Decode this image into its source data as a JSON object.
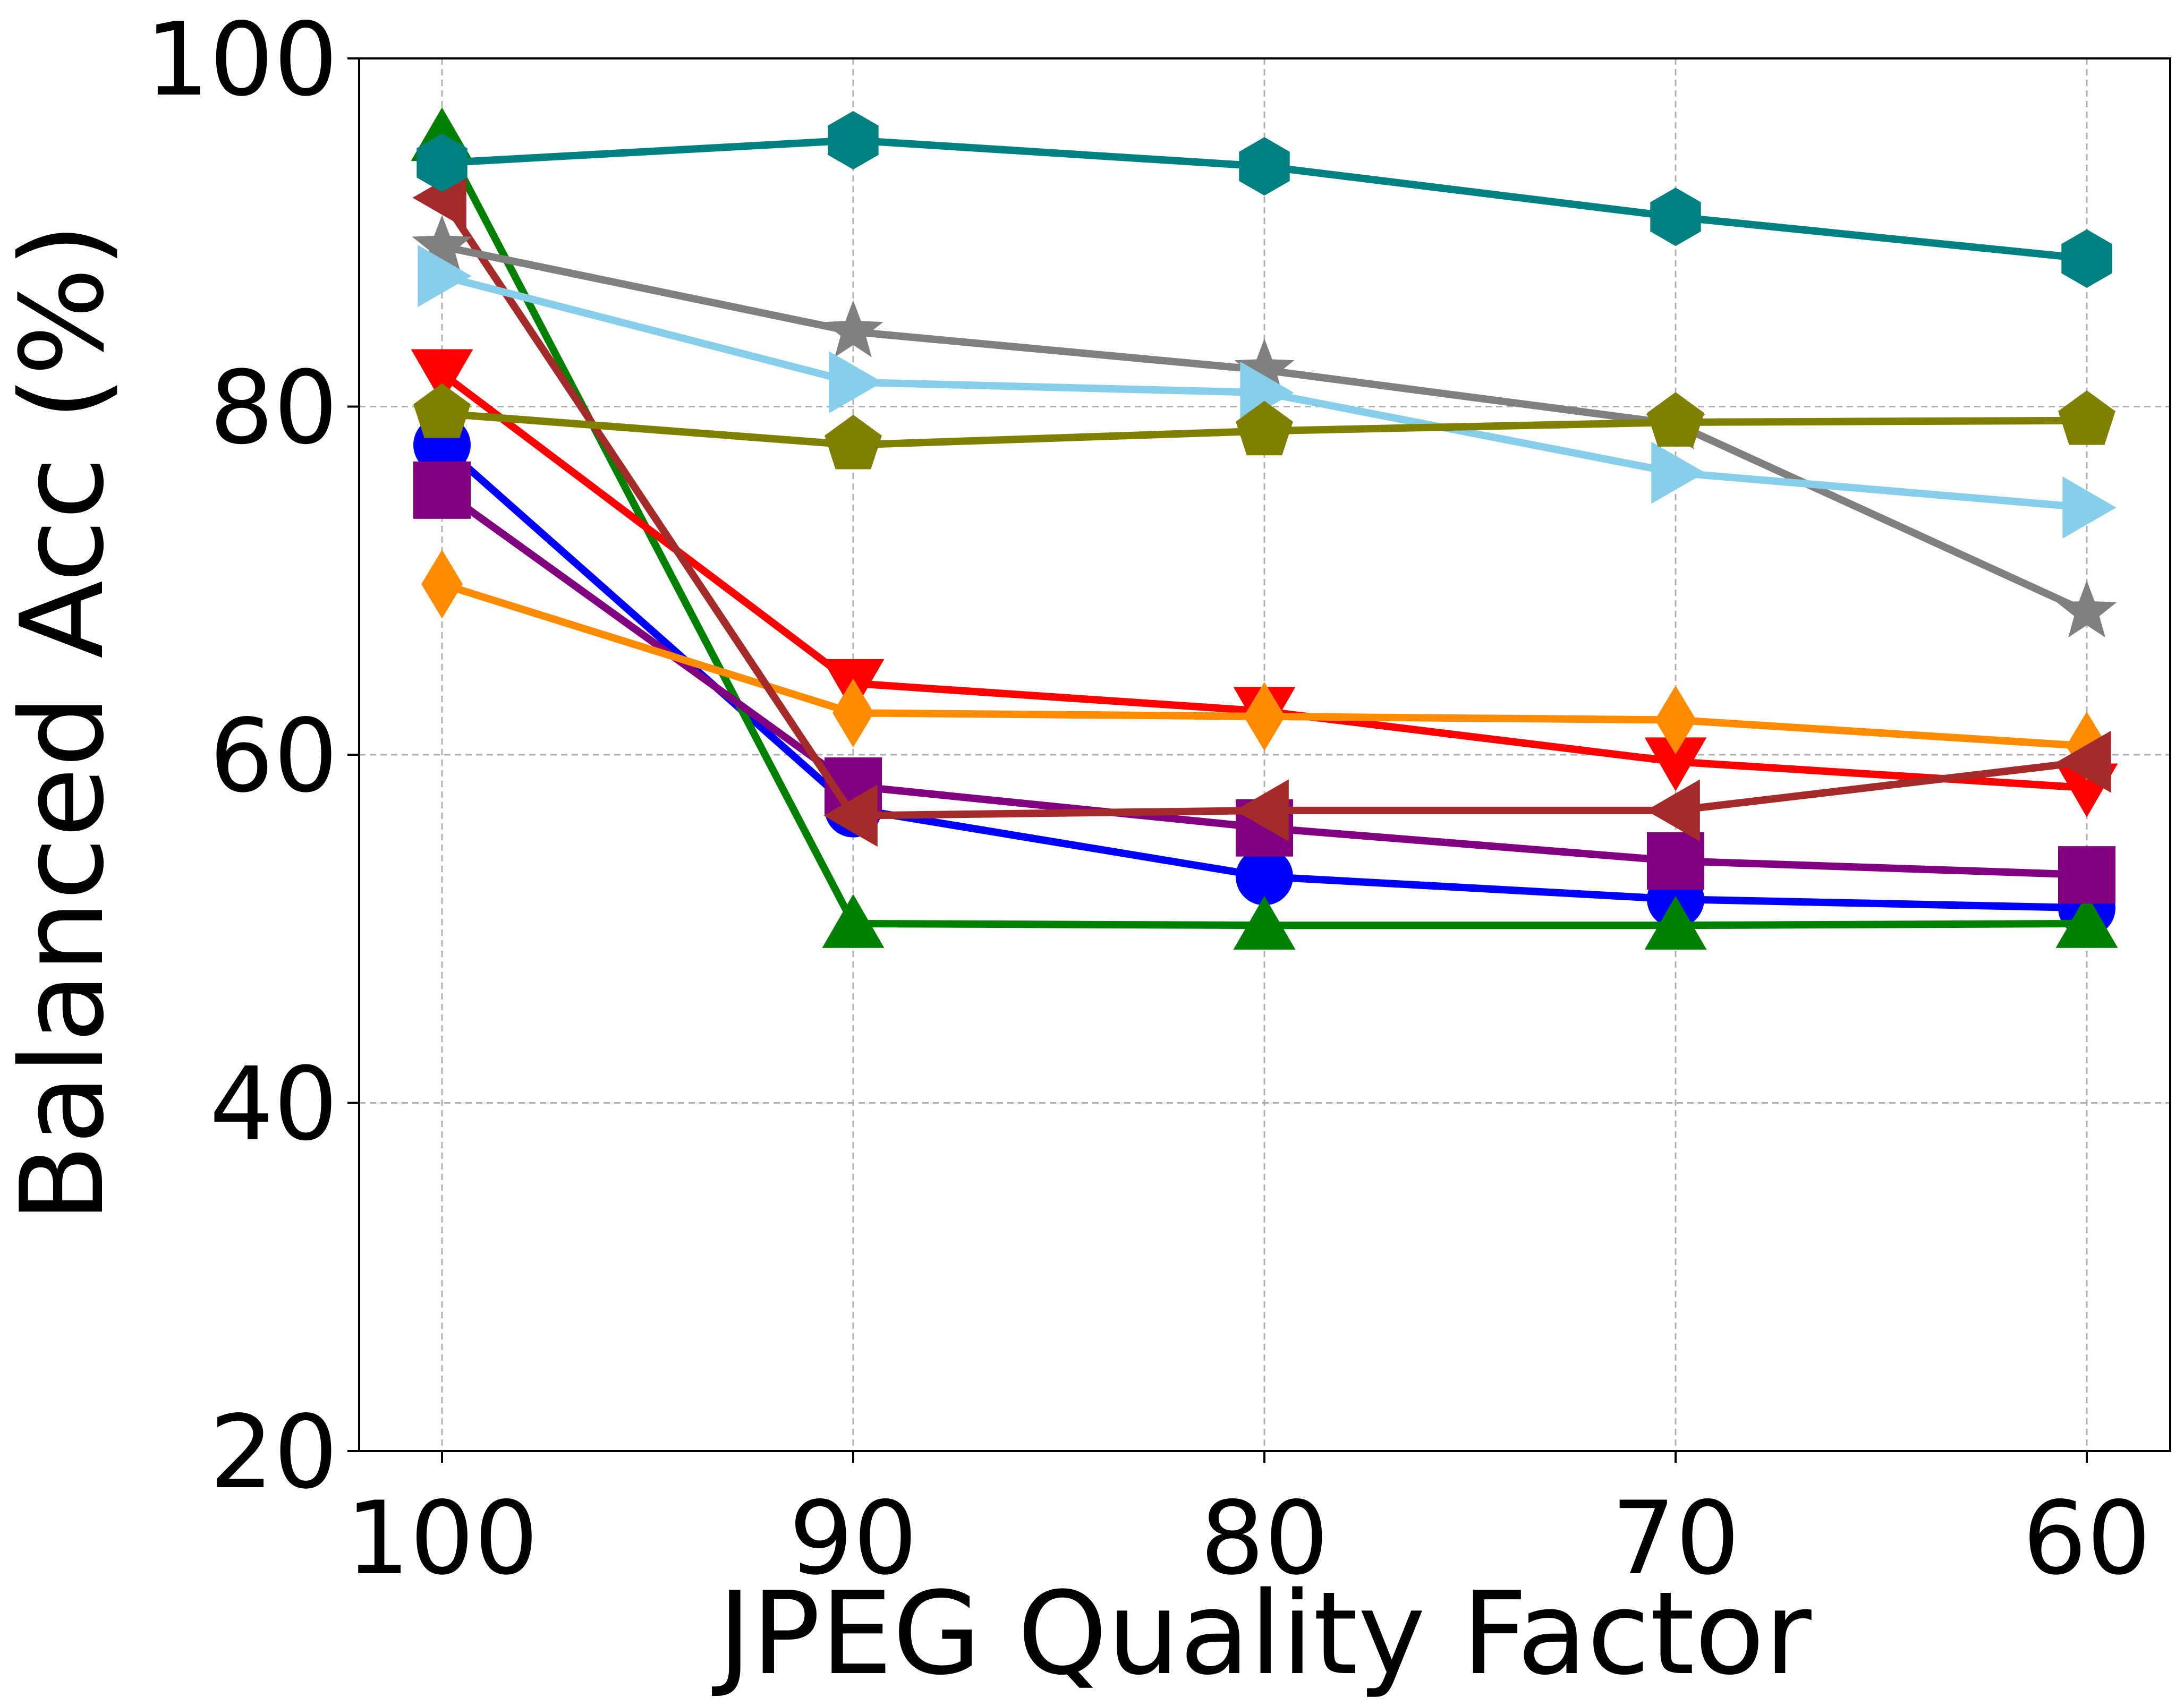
{
  "chart_data": {
    "type": "line",
    "title": "",
    "xlabel": "JPEG Quality Factor",
    "ylabel": "Balanced Acc (%)",
    "x": [
      100,
      90,
      80,
      70,
      60
    ],
    "x_tick_labels": [
      "100",
      "90",
      "80",
      "70",
      "60"
    ],
    "y_tick_labels": [
      "20",
      "40",
      "60",
      "80",
      "100"
    ],
    "ylim": [
      20,
      100
    ],
    "y_ticks": [
      20,
      40,
      60,
      80,
      100
    ],
    "grid": true,
    "legend": "none",
    "series": [
      {
        "name": "blue-circle",
        "color": "#0000ff",
        "marker": "circle",
        "values": [
          77.8,
          56.9,
          53.0,
          51.7,
          51.2
        ]
      },
      {
        "name": "green-triangle-up",
        "color": "#008000",
        "marker": "triangle-up",
        "values": [
          95.5,
          50.3,
          50.2,
          50.2,
          50.3
        ]
      },
      {
        "name": "red-triangle-down",
        "color": "#ff0000",
        "marker": "triangle-down",
        "values": [
          81.9,
          64.1,
          62.5,
          59.6,
          58.1
        ]
      },
      {
        "name": "purple-square",
        "color": "#800080",
        "marker": "square",
        "values": [
          75.2,
          58.2,
          55.8,
          53.9,
          53.1
        ]
      },
      {
        "name": "orange-diamond",
        "color": "#ff8c00",
        "marker": "diamond",
        "values": [
          69.8,
          62.4,
          62.2,
          62.0,
          60.5
        ]
      },
      {
        "name": "brown-triangle-left",
        "color": "#a52a2a",
        "marker": "triangle-left",
        "values": [
          92.0,
          56.5,
          56.8,
          56.8,
          59.6
        ]
      },
      {
        "name": "gray-star",
        "color": "#808080",
        "marker": "star",
        "values": [
          89.2,
          84.3,
          82.1,
          79.0,
          68.2
        ]
      },
      {
        "name": "skyblue-triangle-right",
        "color": "#87ceeb",
        "marker": "triangle-right",
        "values": [
          87.5,
          81.4,
          80.8,
          76.2,
          74.2
        ]
      },
      {
        "name": "olive-pentagon",
        "color": "#808000",
        "marker": "pentagon",
        "values": [
          79.6,
          77.8,
          78.6,
          79.1,
          79.2
        ]
      },
      {
        "name": "teal-hexagon",
        "color": "#008080",
        "marker": "hexagon",
        "values": [
          94.0,
          95.3,
          93.8,
          90.9,
          88.5
        ]
      }
    ]
  }
}
